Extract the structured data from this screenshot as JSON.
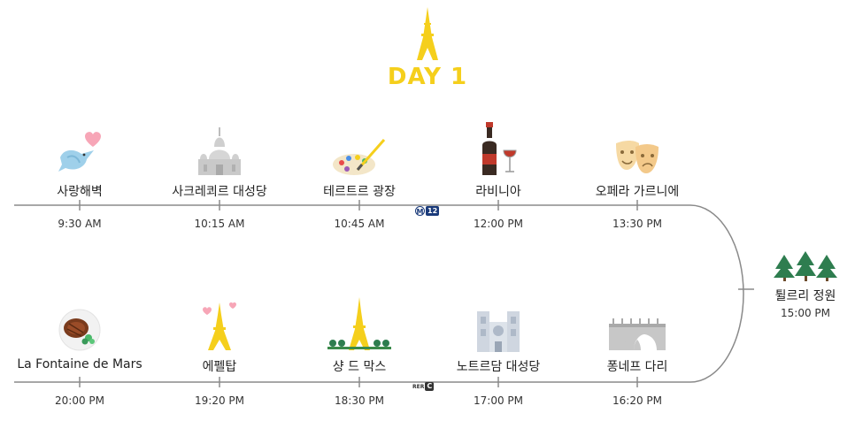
{
  "header": {
    "title": "DAY 1",
    "icon": "eiffel-tower-icon",
    "accent": "#f5cf1c"
  },
  "top_stops": [
    {
      "name": "사랑해벽",
      "time": "9:30 AM",
      "icon": "dove-heart-icon"
    },
    {
      "name": "사크레쾨르 대성당",
      "time": "10:15 AM",
      "icon": "basilica-icon"
    },
    {
      "name": "테르트르 광장",
      "time": "10:45 AM",
      "icon": "palette-icon"
    },
    {
      "name": "라비니아",
      "time": "12:00 PM",
      "icon": "wine-bottle-icon"
    },
    {
      "name": "오페라 가르니에",
      "time": "13:30 PM",
      "icon": "theater-masks-icon"
    }
  ],
  "side_stop": {
    "name": "튈르리 정원",
    "time": "15:00 PM",
    "icon": "trees-icon"
  },
  "bottom_stops": [
    {
      "name": "La Fontaine de Mars",
      "time": "20:00 PM",
      "icon": "steak-plate-icon"
    },
    {
      "name": "에펠탑",
      "time": "19:20 PM",
      "icon": "eiffel-tower-hearts-icon"
    },
    {
      "name": "샹 드 막스",
      "time": "18:30 PM",
      "icon": "eiffel-tower-park-icon"
    },
    {
      "name": "노트르담 대성당",
      "time": "17:00 PM",
      "icon": "notre-dame-icon"
    },
    {
      "name": "퐁네프 다리",
      "time": "16:20 PM",
      "icon": "bridge-icon"
    }
  ],
  "transit": {
    "metro": {
      "letter": "M",
      "line": "12"
    },
    "rer": {
      "label": "RER",
      "line": "C"
    }
  }
}
